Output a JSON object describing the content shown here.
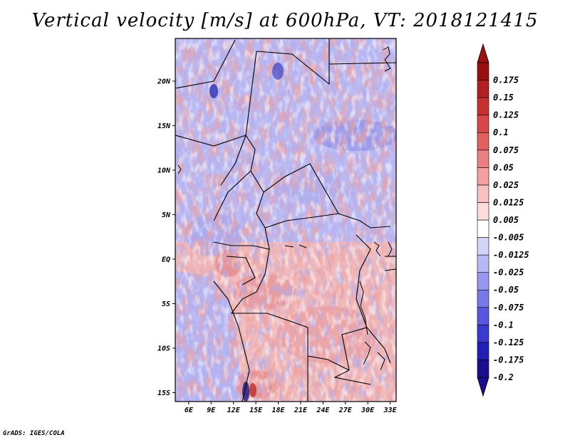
{
  "title": "Vertical velocity [m/s] at 600hPa, VT: 2018121415",
  "credit": "GrADS: IGES/COLA",
  "map": {
    "lat_ticks": [
      {
        "lat": 20,
        "label": "20N"
      },
      {
        "lat": 15,
        "label": "15N"
      },
      {
        "lat": 10,
        "label": "10N"
      },
      {
        "lat": 5,
        "label": "5N"
      },
      {
        "lat": 0,
        "label": "EQ"
      },
      {
        "lat": -5,
        "label": "5S"
      },
      {
        "lat": -10,
        "label": "10S"
      },
      {
        "lat": -15,
        "label": "15S"
      }
    ],
    "lon_ticks": [
      {
        "lon": 6,
        "label": "6E"
      },
      {
        "lon": 9,
        "label": "9E"
      },
      {
        "lon": 12,
        "label": "12E"
      },
      {
        "lon": 15,
        "label": "15E"
      },
      {
        "lon": 18,
        "label": "18E"
      },
      {
        "lon": 21,
        "label": "21E"
      },
      {
        "lon": 24,
        "label": "24E"
      },
      {
        "lon": 27,
        "label": "27E"
      },
      {
        "lon": 30,
        "label": "30E"
      },
      {
        "lon": 33,
        "label": "33E"
      }
    ],
    "lat_range": [
      -16,
      24.8
    ],
    "lon_range": [
      4.2,
      33.8
    ]
  },
  "colorbar": {
    "colors": [
      "#1d0e8e",
      "#2020b8",
      "#3a3ad2",
      "#5757df",
      "#7878e6",
      "#9898ee",
      "#b8b8f5",
      "#d4d4f8",
      "#ffffff",
      "#fcdcdc",
      "#f8c2c2",
      "#f4a0a0",
      "#ea8080",
      "#e26060",
      "#d84848",
      "#c83030",
      "#b02020",
      "#9a1010"
    ],
    "labels": [
      "-0.2",
      "-0.175",
      "-0.125",
      "-0.1",
      "-0.075",
      "-0.05",
      "-0.025",
      "-0.0125",
      "-0.005",
      "0.005",
      "0.0125",
      "0.025",
      "0.05",
      "0.075",
      "0.1",
      "0.125",
      "0.15",
      "0.175"
    ]
  }
}
